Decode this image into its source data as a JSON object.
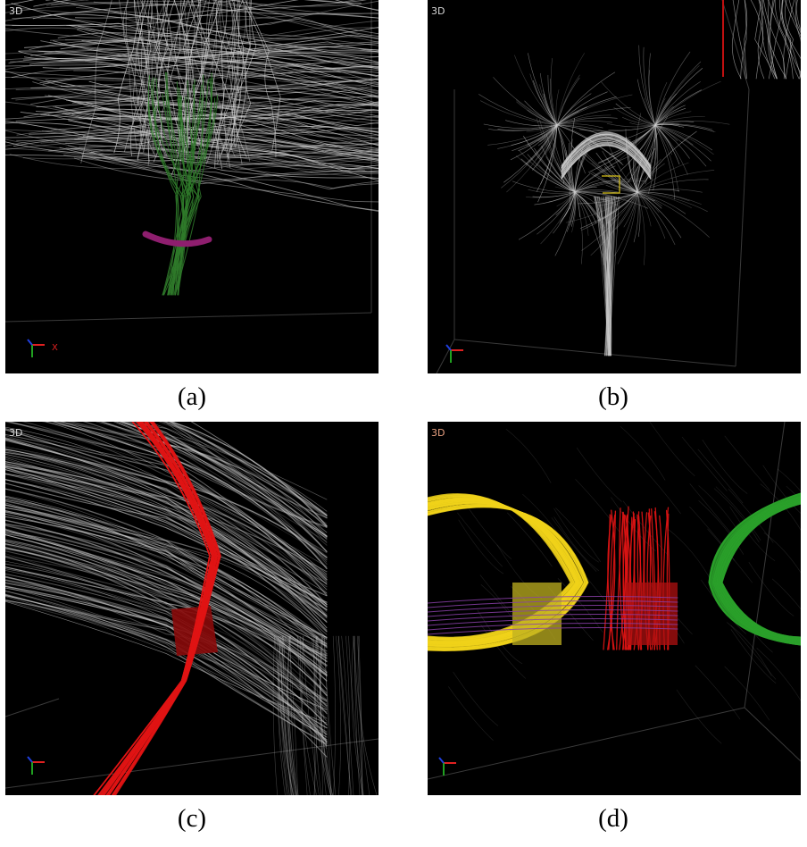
{
  "panels": [
    {
      "id": "a",
      "view_label": "3D",
      "caption": "(a)",
      "axis_label": "X"
    },
    {
      "id": "b",
      "view_label": "3D",
      "caption": "(b)"
    },
    {
      "id": "c",
      "view_label": "3D",
      "caption": "(c)"
    },
    {
      "id": "d",
      "view_label": "3D",
      "caption": "(d)"
    }
  ],
  "colors": {
    "background": "#000000",
    "fiber_white": "#cfcfcf",
    "fiber_green_a": "#2f7a2a",
    "roi_magenta": "#8e1e6e",
    "roi_yellow_box": "#d9c21a",
    "fiber_red": "#e01414",
    "fiber_yellow": "#f0d21a",
    "fiber_green_d": "#2aa02a",
    "fiber_purple": "#8a3fa8"
  }
}
